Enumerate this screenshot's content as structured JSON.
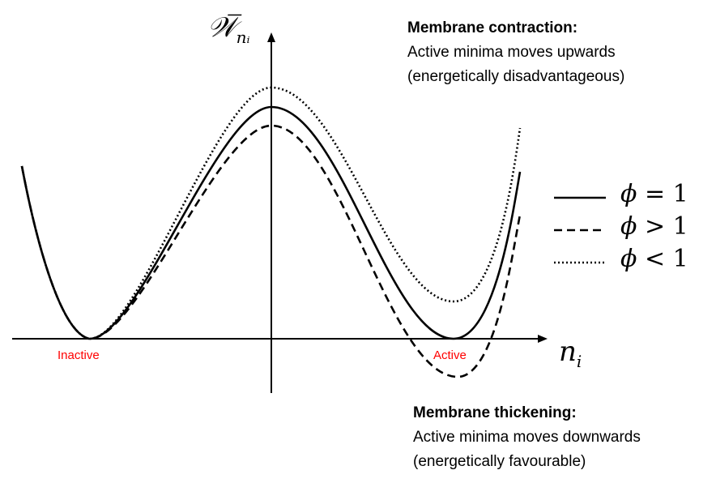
{
  "axes": {
    "y_label_main": "𝒲̅",
    "y_label_sub": "nᵢ",
    "x_label_main": "n",
    "x_label_sub": "i"
  },
  "states": {
    "inactive": "Inactive",
    "active": "Active"
  },
  "legend": [
    {
      "phi": "ϕ",
      "relation": "= 1",
      "style": "solid"
    },
    {
      "phi": "ϕ",
      "relation": "> 1",
      "style": "dashed"
    },
    {
      "phi": "ϕ",
      "relation": "< 1",
      "style": "dotted"
    }
  ],
  "notes": {
    "top": {
      "heading": "Membrane contraction:",
      "line1": "Active minima moves upwards",
      "line2": "(energetically disadvantageous)"
    },
    "bottom": {
      "heading": "Membrane thickening:",
      "line1": "Active minima moves downwards",
      "line2": "(energetically favourable)"
    }
  },
  "colors": {
    "curve": "#000000",
    "state_label": "#ff0000"
  }
}
